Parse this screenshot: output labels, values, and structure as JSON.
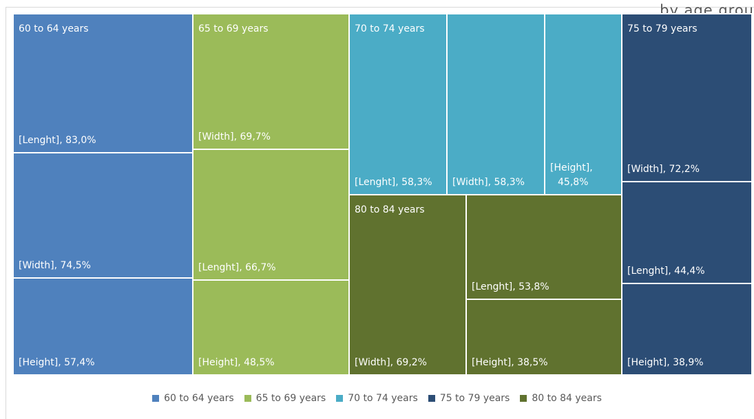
{
  "subtitle": "by age grou",
  "chart_data": {
    "type": "treemap",
    "colors": {
      "60 to 64 years": "#4f81bd",
      "65 to 69 years": "#9bbb59",
      "70 to 74 years": "#4bacc6",
      "75 to 79 years": "#2c4d75",
      "80 to 84 years": "#60722f"
    },
    "series": [
      {
        "name": "60 to 64 years",
        "items": [
          {
            "label": "[Lenght]",
            "value_label": "83,0%",
            "value": 83.0
          },
          {
            "label": "[Width]",
            "value_label": "74,5%",
            "value": 74.5
          },
          {
            "label": "[Height]",
            "value_label": "57,4%",
            "value": 57.4
          }
        ]
      },
      {
        "name": "65 to 69 years",
        "items": [
          {
            "label": "[Width]",
            "value_label": "69,7%",
            "value": 69.7
          },
          {
            "label": "[Lenght]",
            "value_label": "66,7%",
            "value": 66.7
          },
          {
            "label": "[Height]",
            "value_label": "48,5%",
            "value": 48.5
          }
        ]
      },
      {
        "name": "70 to 74 years",
        "items": [
          {
            "label": "[Lenght]",
            "value_label": "58,3%",
            "value": 58.3
          },
          {
            "label": "[Width]",
            "value_label": "58,3%",
            "value": 58.3
          },
          {
            "label": "[Height]",
            "value_label": "45,8%",
            "value": 45.8
          }
        ]
      },
      {
        "name": "75 to 79 years",
        "items": [
          {
            "label": "[Width]",
            "value_label": "72,2%",
            "value": 72.2
          },
          {
            "label": "[Lenght]",
            "value_label": "44,4%",
            "value": 44.4
          },
          {
            "label": "[Height]",
            "value_label": "38,9%",
            "value": 38.9
          }
        ]
      },
      {
        "name": "80 to 84 years",
        "items": [
          {
            "label": "[Width]",
            "value_label": "69,2%",
            "value": 69.2
          },
          {
            "label": "[Lenght]",
            "value_label": "53,8%",
            "value": 53.8
          },
          {
            "label": "[Height]",
            "value_label": "38,5%",
            "value": 38.5
          }
        ]
      }
    ],
    "legend": [
      "60 to 64 years",
      "65 to 69 years",
      "70 to 74 years",
      "75 to 79 years",
      "80 to 84 years"
    ],
    "legend_position": "bottom"
  }
}
